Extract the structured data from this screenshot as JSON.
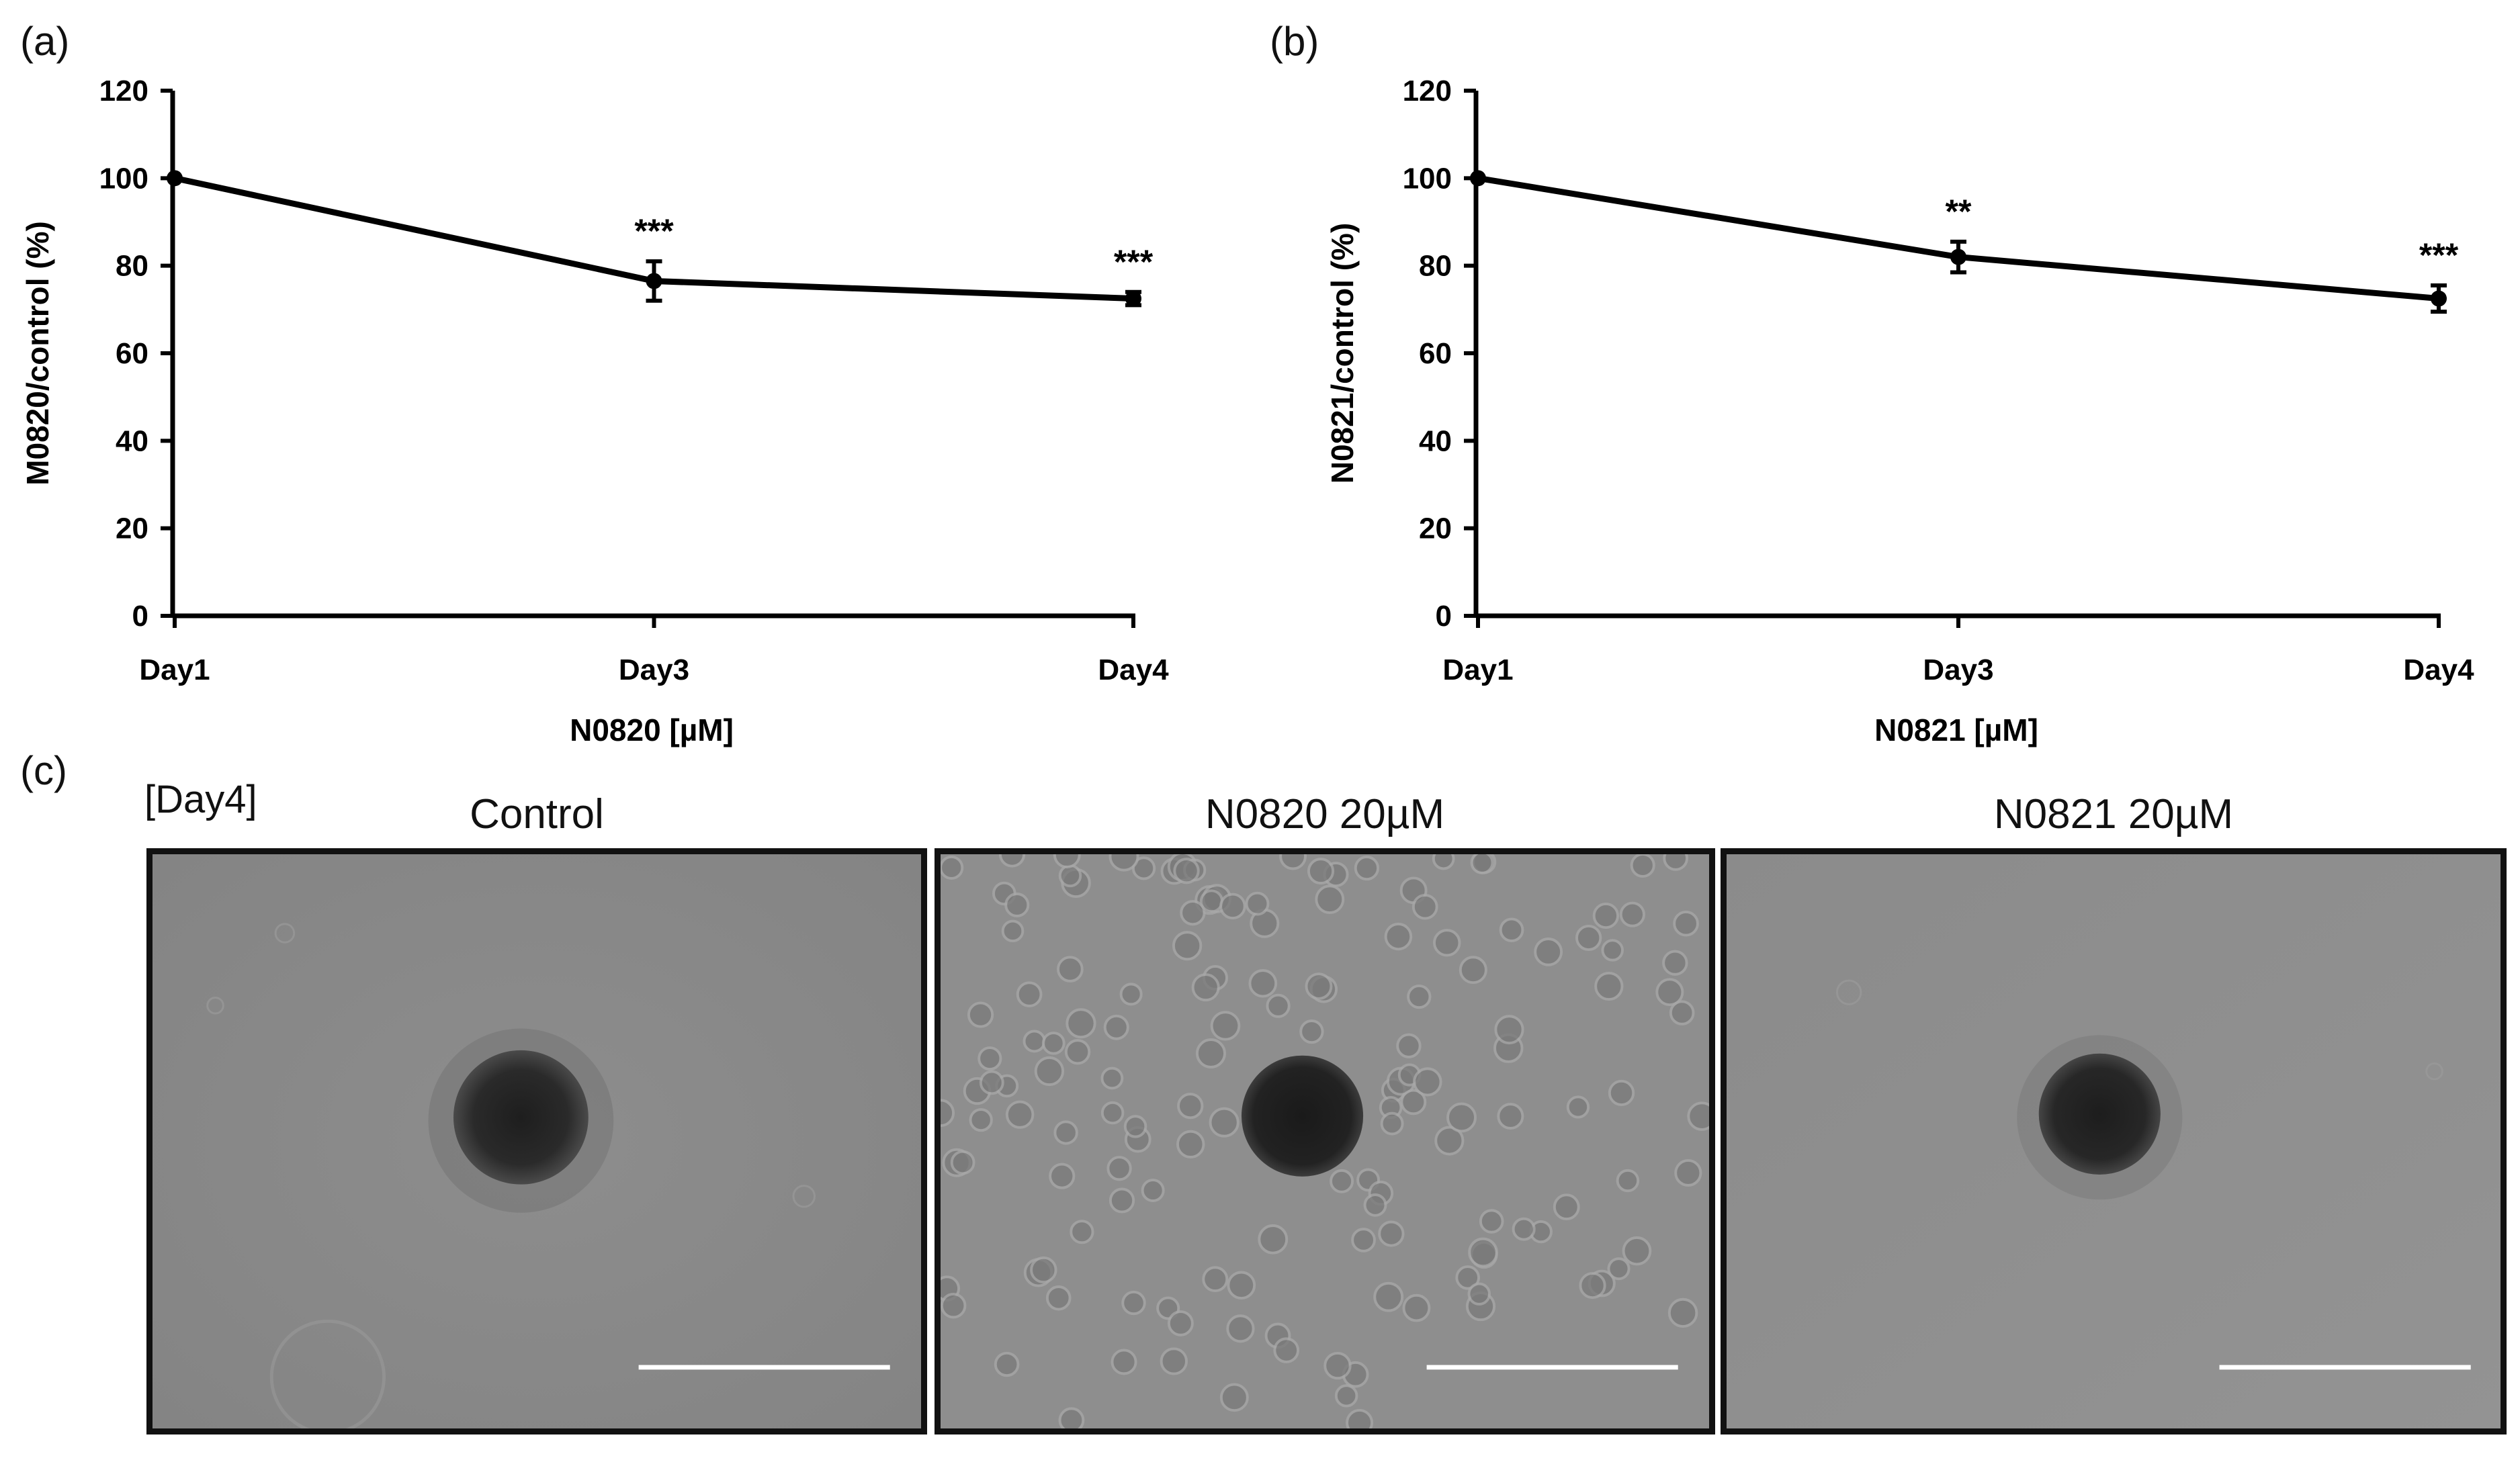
{
  "panels": {
    "a": "(a)",
    "b": "(b)",
    "c": "(c)"
  },
  "chart_data": [
    {
      "type": "line",
      "categories": [
        "Day1",
        "Day3",
        "Day4"
      ],
      "series": [
        {
          "values": [
            100,
            76.5,
            72.5
          ],
          "errors": [
            0,
            4.5,
            1.5
          ]
        }
      ],
      "significance": [
        "",
        "***",
        "***"
      ],
      "xlabel": "N0820 [µM]",
      "ylabel": "M0820/control (%)",
      "ylim": [
        0,
        120
      ],
      "yticks": [
        0,
        20,
        40,
        60,
        80,
        100,
        120
      ],
      "grid": false,
      "color": "#000000"
    },
    {
      "type": "line",
      "categories": [
        "Day1",
        "Day3",
        "Day4"
      ],
      "series": [
        {
          "values": [
            100,
            82,
            72.5
          ],
          "errors": [
            0,
            3.5,
            3
          ]
        }
      ],
      "significance": [
        "",
        "**",
        "***"
      ],
      "xlabel": "N0821 [µM]",
      "ylabel": "N0821/control (%)",
      "ylim": [
        0,
        120
      ],
      "yticks": [
        0,
        20,
        40,
        60,
        80,
        100,
        120
      ],
      "grid": false,
      "color": "#000000"
    }
  ],
  "microscopy": {
    "day_label": "[Day4]",
    "images": [
      {
        "title": "Control"
      },
      {
        "title": "N0820 20µM"
      },
      {
        "title": "N0821 20µM"
      }
    ]
  }
}
